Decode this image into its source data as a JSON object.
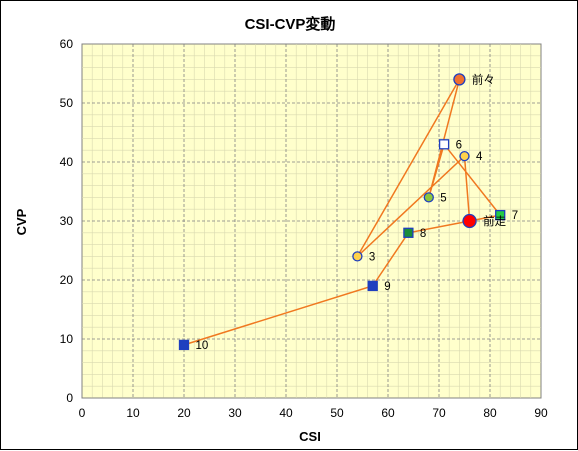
{
  "chart_data": {
    "type": "scatter",
    "title": "CSI-CVP変動",
    "xlabel": "CSI",
    "ylabel": "CVP",
    "xlim": [
      0,
      90
    ],
    "ylim": [
      0,
      60
    ],
    "x_ticks": [
      0,
      10,
      20,
      30,
      40,
      50,
      60,
      70,
      80,
      90
    ],
    "y_ticks": [
      0,
      10,
      20,
      30,
      40,
      50,
      60
    ],
    "grid": true,
    "legend": "none",
    "colors": {
      "plot_background": "#ffffcc",
      "line": "#f07820",
      "grid": "#808080"
    },
    "line_order": [
      "10",
      "9",
      "8",
      "前走",
      "4",
      "3",
      "前々",
      "5",
      "6",
      "7",
      "前走"
    ],
    "points": [
      {
        "label": "前々",
        "x": 74,
        "y": 54,
        "marker": "circle",
        "fill": "#f07030",
        "stroke": "#1f3fbf",
        "size": 11
      },
      {
        "label": "前走",
        "x": 76,
        "y": 30,
        "marker": "circle",
        "fill": "#ff0000",
        "stroke": "#1f3fbf",
        "size": 13
      },
      {
        "label": "3",
        "x": 54,
        "y": 24,
        "marker": "circle",
        "fill": "#ffd24a",
        "stroke": "#1f3fbf",
        "size": 9
      },
      {
        "label": "4",
        "x": 75,
        "y": 41,
        "marker": "circle",
        "fill": "#ffd24a",
        "stroke": "#1f3fbf",
        "size": 9
      },
      {
        "label": "5",
        "x": 68,
        "y": 34,
        "marker": "circle",
        "fill": "#8cc63f",
        "stroke": "#1f3fbf",
        "size": 9
      },
      {
        "label": "6",
        "x": 71,
        "y": 43,
        "marker": "square",
        "fill": "#ffffff",
        "stroke": "#1f3fbf",
        "size": 9
      },
      {
        "label": "7",
        "x": 82,
        "y": 31,
        "marker": "square",
        "fill": "#22cc44",
        "stroke": "#1f3fbf",
        "size": 9
      },
      {
        "label": "8",
        "x": 64,
        "y": 28,
        "marker": "square",
        "fill": "#1a8c3a",
        "stroke": "#1f3fbf",
        "size": 9
      },
      {
        "label": "9",
        "x": 57,
        "y": 19,
        "marker": "square",
        "fill": "#1f3fbf",
        "stroke": "#1f3fbf",
        "size": 9
      },
      {
        "label": "10",
        "x": 20,
        "y": 9,
        "marker": "square",
        "fill": "#1f3fbf",
        "stroke": "#1f3fbf",
        "size": 9
      }
    ]
  }
}
